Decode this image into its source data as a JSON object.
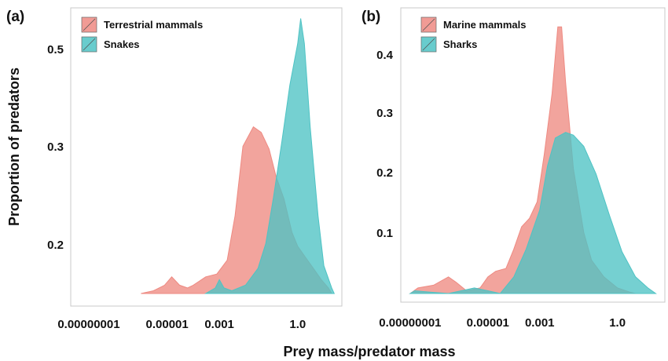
{
  "figure": {
    "ylabel": "Proportion of predators",
    "xlabel": "Prey mass/predator mass"
  },
  "chart_data": [
    {
      "type": "area",
      "panel": "(a)",
      "x_scale": "log",
      "y_ticks": [
        "0.5",
        "0.3",
        "0.2"
      ],
      "x_ticks": [
        {
          "value": 1e-08,
          "label": "0.00000001"
        },
        {
          "value": 1e-05,
          "label": "0.00001"
        },
        {
          "value": 0.001,
          "label": "0.001"
        },
        {
          "value": 1,
          "label": "1.0"
        }
      ],
      "legend": {
        "position": "top-left"
      },
      "series": [
        {
          "name": "Terrestrial mammals",
          "color": "#ee8a82",
          "points": [
            [
              1e-06,
              0.0
            ],
            [
              3e-06,
              0.01
            ],
            [
              8e-06,
              0.03
            ],
            [
              1.5e-05,
              0.06
            ],
            [
              3e-05,
              0.03
            ],
            [
              6e-05,
              0.02
            ],
            [
              0.0001,
              0.03
            ],
            [
              0.0003,
              0.06
            ],
            [
              0.0008,
              0.07
            ],
            [
              0.002,
              0.12
            ],
            [
              0.004,
              0.28
            ],
            [
              0.008,
              0.53
            ],
            [
              0.02,
              0.6
            ],
            [
              0.04,
              0.58
            ],
            [
              0.08,
              0.52
            ],
            [
              0.15,
              0.42
            ],
            [
              0.3,
              0.34
            ],
            [
              0.6,
              0.22
            ],
            [
              1,
              0.17
            ],
            [
              2,
              0.13
            ],
            [
              4,
              0.09
            ],
            [
              8,
              0.05
            ],
            [
              15,
              0.02
            ],
            [
              20,
              0.0
            ]
          ]
        },
        {
          "name": "Snakes",
          "color": "#4ec3c4",
          "points": [
            [
              0.0003,
              0.0
            ],
            [
              0.0007,
              0.02
            ],
            [
              0.001,
              0.05
            ],
            [
              0.0015,
              0.02
            ],
            [
              0.003,
              0.01
            ],
            [
              0.01,
              0.03
            ],
            [
              0.03,
              0.09
            ],
            [
              0.06,
              0.18
            ],
            [
              0.12,
              0.35
            ],
            [
              0.25,
              0.55
            ],
            [
              0.5,
              0.75
            ],
            [
              1,
              0.9
            ],
            [
              1.3,
              0.99
            ],
            [
              1.8,
              0.9
            ],
            [
              3,
              0.6
            ],
            [
              6,
              0.28
            ],
            [
              10,
              0.1
            ],
            [
              20,
              0.02
            ],
            [
              25,
              0.0
            ]
          ]
        }
      ]
    },
    {
      "type": "area",
      "panel": "(b)",
      "x_scale": "log",
      "y_ticks": [
        "0.4",
        "0.3",
        "0.2",
        "0.1"
      ],
      "x_ticks": [
        {
          "value": 1e-08,
          "label": "0.00000001"
        },
        {
          "value": 1e-05,
          "label": "0.00001"
        },
        {
          "value": 0.001,
          "label": "0.001"
        },
        {
          "value": 1,
          "label": "1.0"
        }
      ],
      "legend": {
        "position": "top-left"
      },
      "series": [
        {
          "name": "Marine mammals",
          "color": "#ee8a82",
          "points": [
            [
              1e-08,
              0.0
            ],
            [
              2e-08,
              0.02
            ],
            [
              8e-08,
              0.03
            ],
            [
              3e-07,
              0.06
            ],
            [
              6e-07,
              0.04
            ],
            [
              1.5e-06,
              0.01
            ],
            [
              5e-06,
              0.02
            ],
            [
              1e-05,
              0.06
            ],
            [
              2e-05,
              0.08
            ],
            [
              5e-05,
              0.09
            ],
            [
              0.0001,
              0.16
            ],
            [
              0.0002,
              0.24
            ],
            [
              0.0004,
              0.27
            ],
            [
              0.0008,
              0.33
            ],
            [
              0.0015,
              0.5
            ],
            [
              0.003,
              0.72
            ],
            [
              0.005,
              0.96
            ],
            [
              0.007,
              0.96
            ],
            [
              0.01,
              0.76
            ],
            [
              0.02,
              0.45
            ],
            [
              0.05,
              0.22
            ],
            [
              0.1,
              0.12
            ],
            [
              0.3,
              0.06
            ],
            [
              1,
              0.02
            ],
            [
              3,
              0.005
            ],
            [
              5,
              0.0
            ]
          ]
        },
        {
          "name": "Sharks",
          "color": "#4ec3c4",
          "points": [
            [
              1e-08,
              0.0
            ],
            [
              1.5e-08,
              0.01
            ],
            [
              6e-08,
              0.005
            ],
            [
              3e-07,
              0.0
            ],
            [
              3e-06,
              0.02
            ],
            [
              1e-05,
              0.01
            ],
            [
              3e-05,
              0.0
            ],
            [
              0.0001,
              0.06
            ],
            [
              0.0003,
              0.16
            ],
            [
              0.001,
              0.3
            ],
            [
              0.002,
              0.46
            ],
            [
              0.004,
              0.56
            ],
            [
              0.01,
              0.58
            ],
            [
              0.02,
              0.57
            ],
            [
              0.05,
              0.53
            ],
            [
              0.15,
              0.43
            ],
            [
              0.5,
              0.28
            ],
            [
              1.5,
              0.15
            ],
            [
              5,
              0.06
            ],
            [
              15,
              0.02
            ],
            [
              30,
              0.0
            ]
          ]
        }
      ]
    }
  ]
}
